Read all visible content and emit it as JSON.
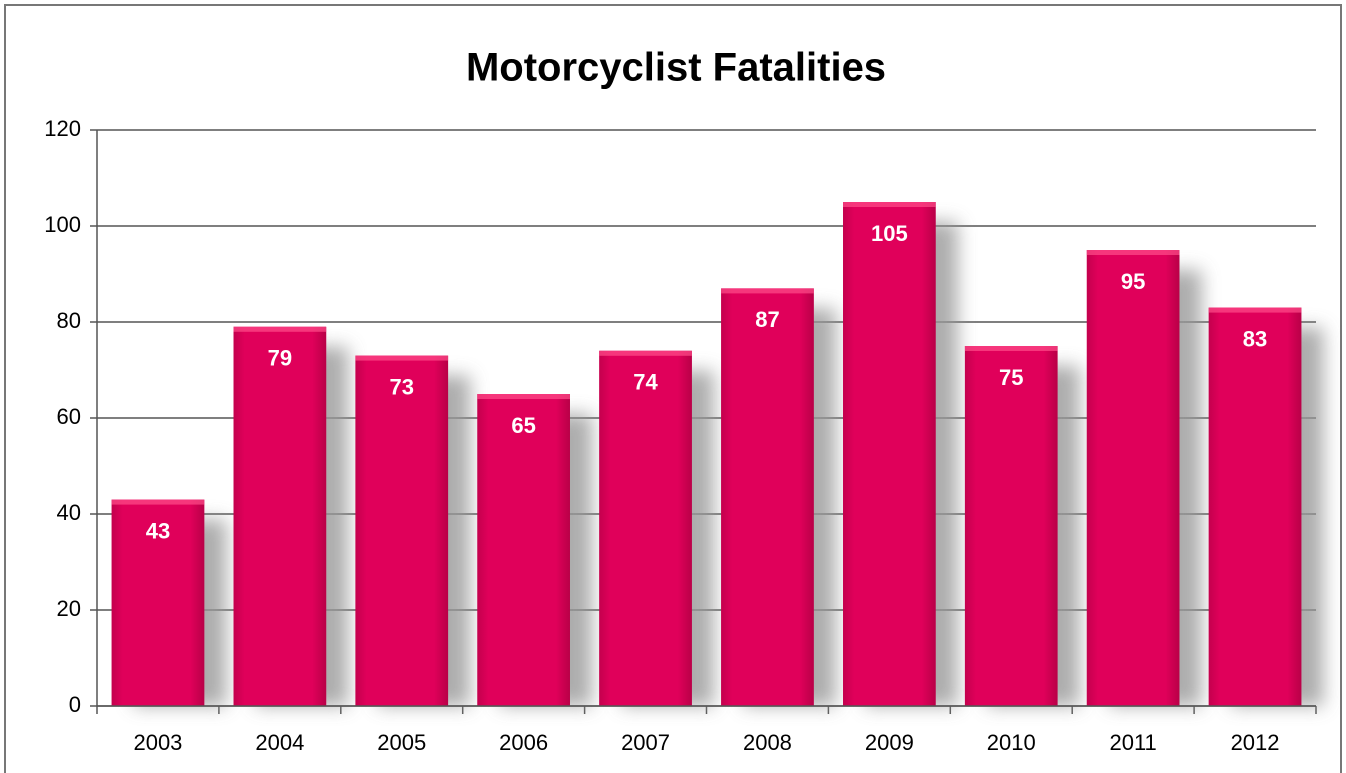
{
  "chart_data": {
    "type": "bar",
    "title": "Motorcyclist Fatalities",
    "categories": [
      "2003",
      "2004",
      "2005",
      "2006",
      "2007",
      "2008",
      "2009",
      "2010",
      "2011",
      "2012"
    ],
    "values": [
      43,
      79,
      73,
      65,
      74,
      87,
      105,
      75,
      95,
      83
    ],
    "color": "#e0005a",
    "ylim": [
      0,
      120
    ],
    "yticks": [
      0,
      20,
      40,
      60,
      80,
      100,
      120
    ],
    "grid": true
  }
}
